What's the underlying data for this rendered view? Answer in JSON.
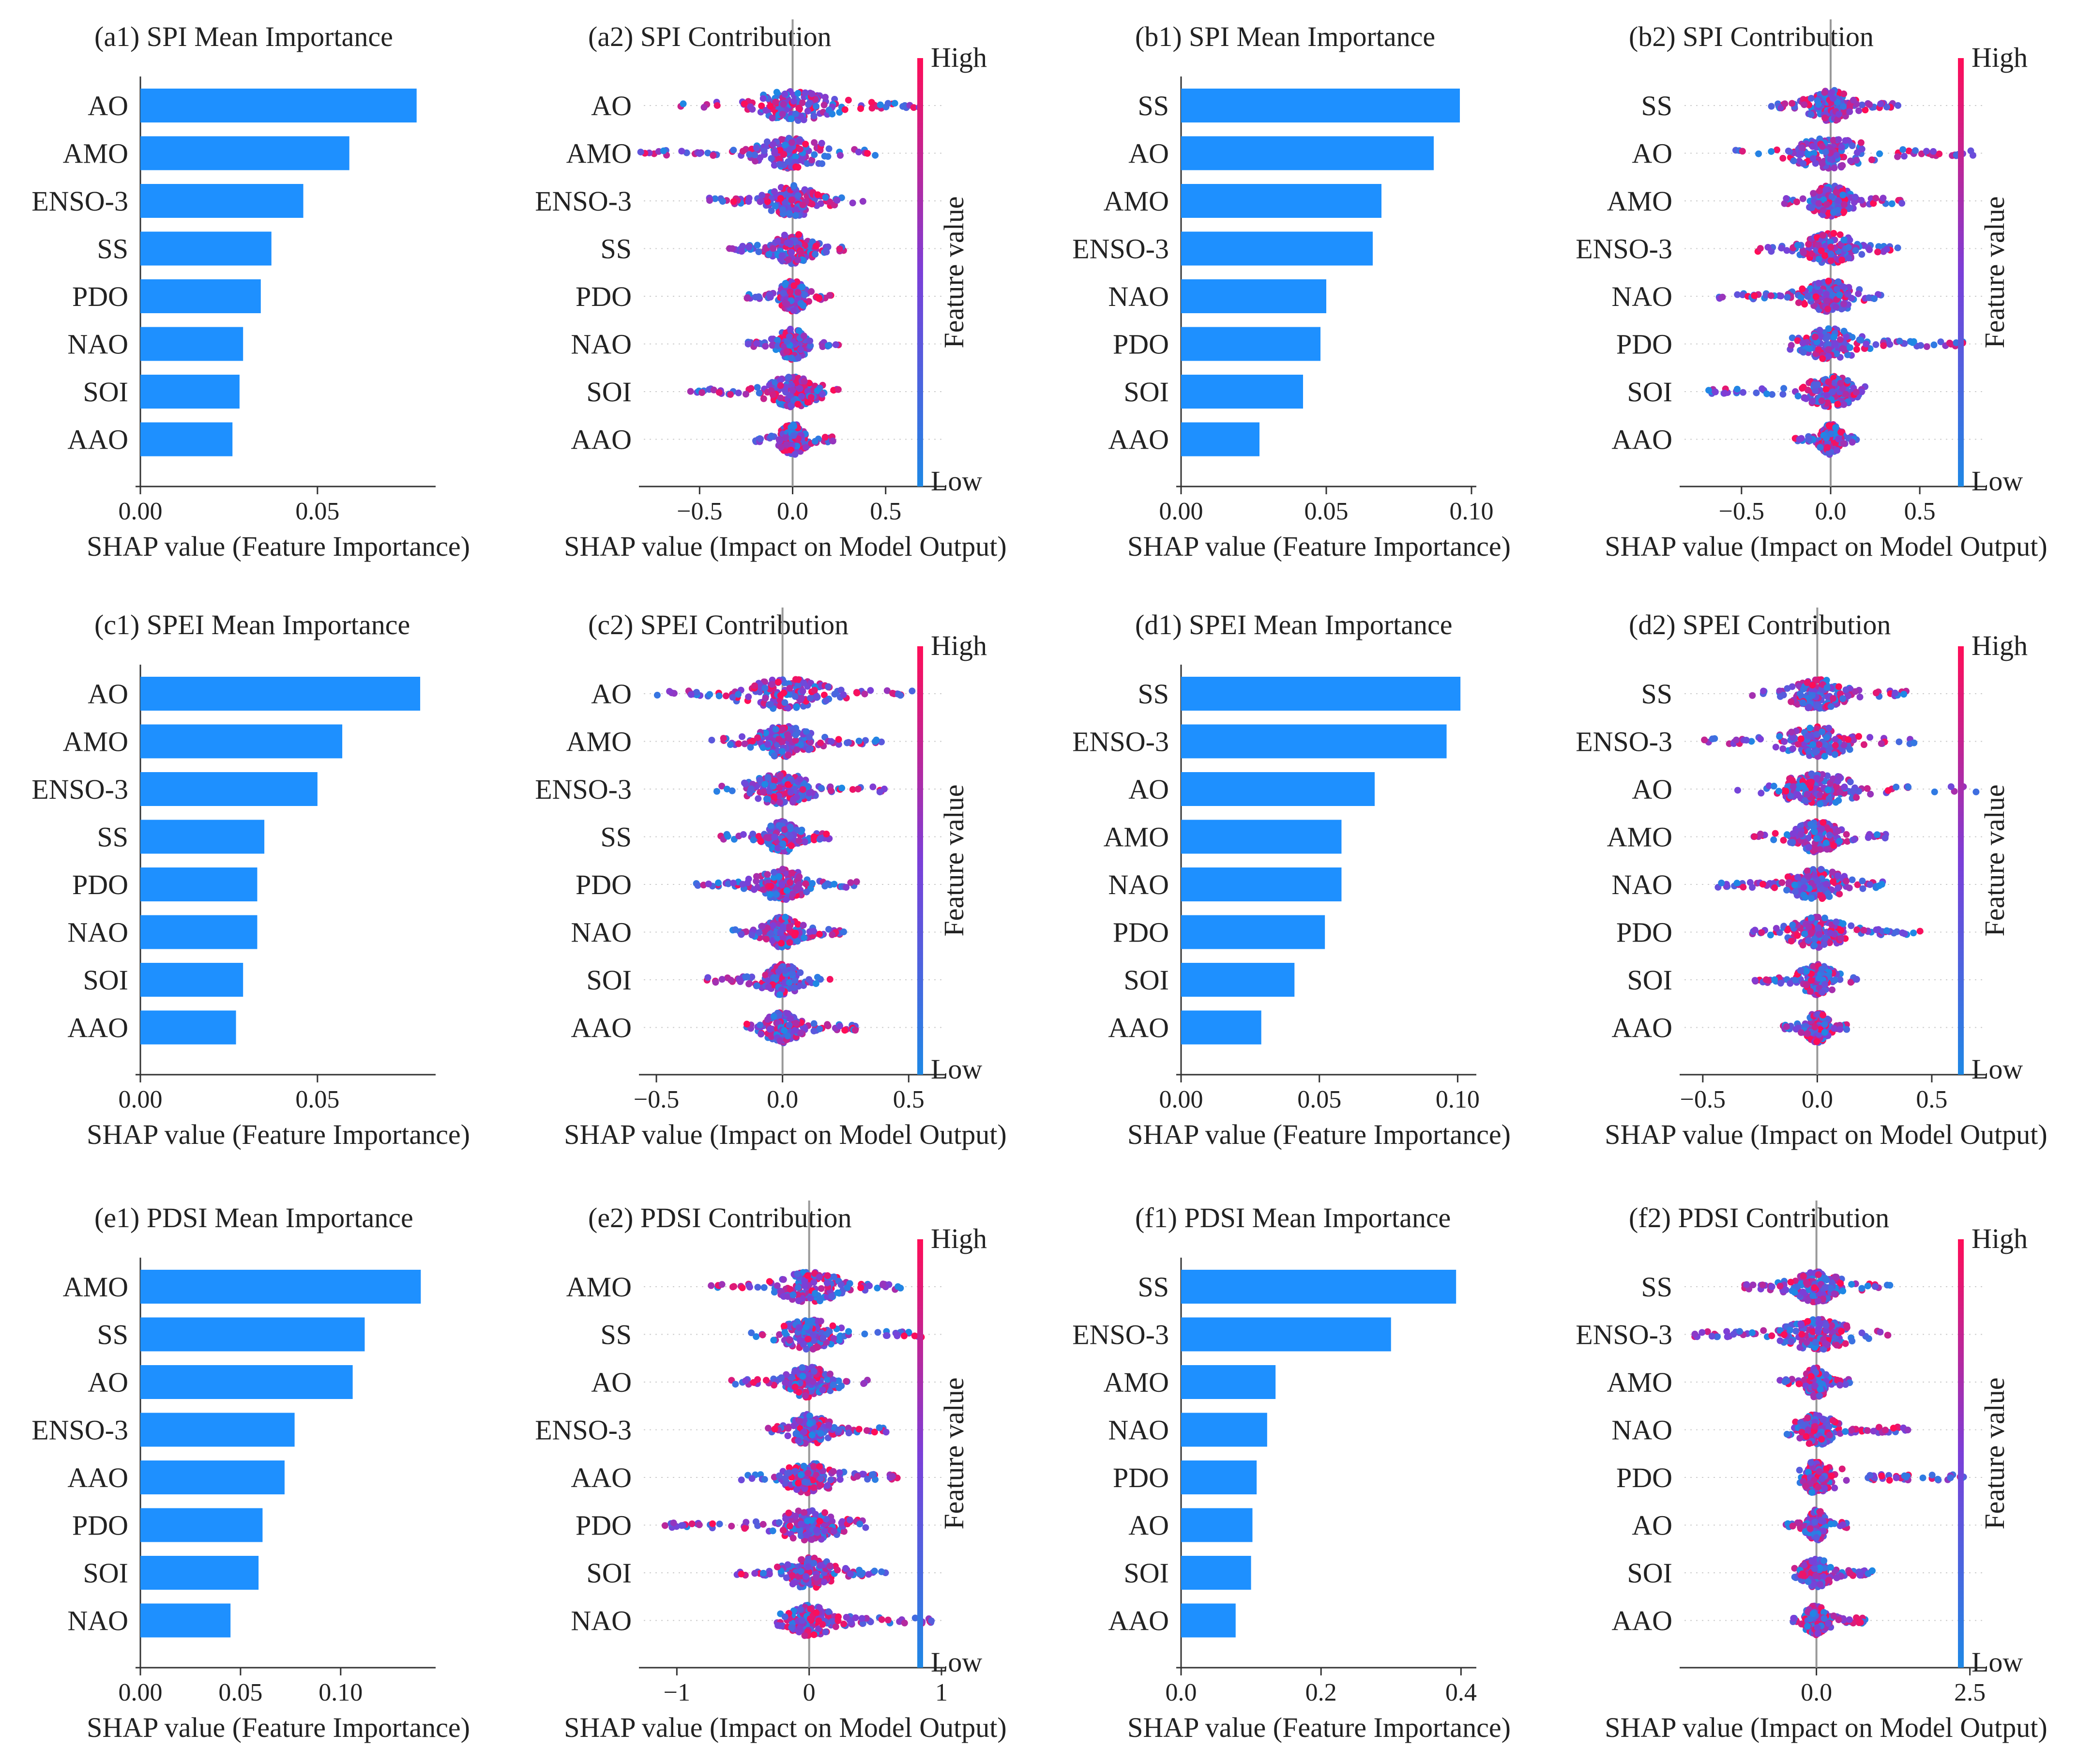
{
  "colors": {
    "bar": "#1e90ff",
    "low": "#1e88e5",
    "mid": "#7b3fd8",
    "high": "#ff0d57"
  },
  "colorbar": {
    "high_label": "High",
    "low_label": "Low",
    "title": "Feature value"
  },
  "chart_data": [
    {
      "id": "a1",
      "type": "bar",
      "orientation": "horizontal",
      "title": "(a1)  SPI Mean Importance",
      "xlabel": "SHAP value (Feature Importance)",
      "categories": [
        "AO",
        "AMO",
        "ENSO-3",
        "SS",
        "PDO",
        "NAO",
        "SOI",
        "AAO"
      ],
      "values": [
        0.078,
        0.059,
        0.046,
        0.037,
        0.034,
        0.029,
        0.028,
        0.026
      ],
      "xlim": [
        0,
        0.082
      ],
      "xticks": [
        0,
        0.05
      ],
      "xtick_labels": [
        "0.00",
        "0.05"
      ]
    },
    {
      "id": "a2",
      "type": "scatter",
      "subtype": "beeswarm",
      "title": "(a2)  SPI Contribution",
      "xlabel": "SHAP value (Impact on Model Output)",
      "categories": [
        "AO",
        "AMO",
        "ENSO-3",
        "SS",
        "PDO",
        "NAO",
        "SOI",
        "AAO"
      ],
      "ranges": [
        [
          -0.62,
          0.7
        ],
        [
          -0.82,
          0.45
        ],
        [
          -0.45,
          0.4
        ],
        [
          -0.35,
          0.3
        ],
        [
          -0.25,
          0.22
        ],
        [
          -0.25,
          0.25
        ],
        [
          -0.6,
          0.25
        ],
        [
          -0.2,
          0.22
        ]
      ],
      "xlim": [
        -0.8,
        0.8
      ],
      "xticks": [
        -0.5,
        0,
        0.5
      ],
      "xtick_labels": [
        "−0.5",
        "0.0",
        "0.5"
      ]
    },
    {
      "id": "b1",
      "type": "bar",
      "orientation": "horizontal",
      "title": "(b1)  SPI Mean Importance",
      "xlabel": "SHAP value (Feature Importance)",
      "categories": [
        "SS",
        "AO",
        "AMO",
        "ENSO-3",
        "NAO",
        "PDO",
        "SOI",
        "AAO"
      ],
      "values": [
        0.096,
        0.087,
        0.069,
        0.066,
        0.05,
        0.048,
        0.042,
        0.027
      ],
      "xlim": [
        0,
        0.1
      ],
      "xticks": [
        0,
        0.05,
        0.1
      ],
      "xtick_labels": [
        "0.00",
        "0.05",
        "0.10"
      ]
    },
    {
      "id": "b2",
      "type": "scatter",
      "subtype": "beeswarm",
      "title": "(b2)  SPI Contribution",
      "xlabel": "SHAP value (Impact on Model Output)",
      "categories": [
        "SS",
        "AO",
        "AMO",
        "ENSO-3",
        "NAO",
        "PDO",
        "SOI",
        "AAO"
      ],
      "ranges": [
        [
          -0.35,
          0.4
        ],
        [
          -0.55,
          0.8
        ],
        [
          -0.3,
          0.4
        ],
        [
          -0.45,
          0.4
        ],
        [
          -0.65,
          0.3
        ],
        [
          -0.3,
          0.75
        ],
        [
          -0.7,
          0.2
        ],
        [
          -0.2,
          0.15
        ]
      ],
      "xlim": [
        -0.82,
        0.85
      ],
      "xticks": [
        -0.5,
        0,
        0.5
      ],
      "xtick_labels": [
        "−0.5",
        "0.0",
        "0.5"
      ]
    },
    {
      "id": "c1",
      "type": "bar",
      "orientation": "horizontal",
      "title": "(c1)  SPEI Mean Importance",
      "xlabel": "SHAP value (Feature Importance)",
      "categories": [
        "AO",
        "AMO",
        "ENSO-3",
        "SS",
        "PDO",
        "NAO",
        "SOI",
        "AAO"
      ],
      "values": [
        0.079,
        0.057,
        0.05,
        0.035,
        0.033,
        0.033,
        0.029,
        0.027
      ],
      "xlim": [
        0,
        0.082
      ],
      "xticks": [
        0,
        0.05
      ],
      "xtick_labels": [
        "0.00",
        "0.05"
      ]
    },
    {
      "id": "c2",
      "type": "scatter",
      "subtype": "beeswarm",
      "title": "(c2)  SPEI Contribution",
      "xlabel": "SHAP value (Impact on Model Output)",
      "categories": [
        "AO",
        "AMO",
        "ENSO-3",
        "SS",
        "PDO",
        "NAO",
        "SOI",
        "AAO"
      ],
      "ranges": [
        [
          -0.5,
          0.6
        ],
        [
          -0.3,
          0.4
        ],
        [
          -0.3,
          0.45
        ],
        [
          -0.25,
          0.2
        ],
        [
          -0.35,
          0.3
        ],
        [
          -0.2,
          0.25
        ],
        [
          -0.3,
          0.2
        ],
        [
          -0.15,
          0.3
        ]
      ],
      "xlim": [
        -0.55,
        0.63
      ],
      "xticks": [
        -0.5,
        0,
        0.5
      ],
      "xtick_labels": [
        "−0.5",
        "0.0",
        "0.5"
      ]
    },
    {
      "id": "d1",
      "type": "bar",
      "orientation": "horizontal",
      "title": "(d1)  SPEI Mean Importance",
      "xlabel": "SHAP value (Feature Importance)",
      "categories": [
        "SS",
        "ENSO-3",
        "AO",
        "AMO",
        "NAO",
        "PDO",
        "SOI",
        "AAO"
      ],
      "values": [
        0.101,
        0.096,
        0.07,
        0.058,
        0.058,
        0.052,
        0.041,
        0.029
      ],
      "xlim": [
        0,
        0.105
      ],
      "xticks": [
        0,
        0.05,
        0.1
      ],
      "xtick_labels": [
        "0.00",
        "0.05",
        "0.10"
      ]
    },
    {
      "id": "d2",
      "type": "scatter",
      "subtype": "beeswarm",
      "title": "(d2)  SPEI Contribution",
      "xlabel": "SHAP value (Impact on Model Output)",
      "categories": [
        "SS",
        "ENSO-3",
        "AO",
        "AMO",
        "NAO",
        "PDO",
        "SOI",
        "AAO"
      ],
      "ranges": [
        [
          -0.3,
          0.4
        ],
        [
          -0.5,
          0.45
        ],
        [
          -0.35,
          0.7
        ],
        [
          -0.3,
          0.3
        ],
        [
          -0.45,
          0.3
        ],
        [
          -0.3,
          0.45
        ],
        [
          -0.3,
          0.2
        ],
        [
          -0.15,
          0.15
        ]
      ],
      "xlim": [
        -0.58,
        0.72
      ],
      "xticks": [
        -0.5,
        0,
        0.5
      ],
      "xtick_labels": [
        "−0.5",
        "0.0",
        "0.5"
      ]
    },
    {
      "id": "e1",
      "type": "bar",
      "orientation": "horizontal",
      "title": "(e1)  PDSI Mean Importance",
      "xlabel": "SHAP value (Feature Importance)",
      "categories": [
        "AMO",
        "SS",
        "AO",
        "ENSO-3",
        "AAO",
        "PDO",
        "SOI",
        "NAO"
      ],
      "values": [
        0.14,
        0.112,
        0.106,
        0.077,
        0.072,
        0.061,
        0.059,
        0.045
      ],
      "xlim": [
        0,
        0.145
      ],
      "xticks": [
        0,
        0.05,
        0.1
      ],
      "xtick_labels": [
        "0.00",
        "0.05",
        "0.10"
      ]
    },
    {
      "id": "e2",
      "type": "scatter",
      "subtype": "beeswarm",
      "title": "(e2)  PDSI Contribution",
      "xlabel": "SHAP value (Impact on Model Output)",
      "categories": [
        "AMO",
        "SS",
        "AO",
        "ENSO-3",
        "AAO",
        "PDO",
        "SOI",
        "NAO"
      ],
      "ranges": [
        [
          -0.75,
          0.7
        ],
        [
          -0.45,
          0.85
        ],
        [
          -0.6,
          0.45
        ],
        [
          -0.35,
          0.6
        ],
        [
          -0.55,
          0.7
        ],
        [
          -1.12,
          0.45
        ],
        [
          -0.55,
          0.6
        ],
        [
          -0.25,
          0.95
        ]
      ],
      "xlim": [
        -1.25,
        1.0
      ],
      "xticks": [
        -1,
        0,
        1
      ],
      "xtick_labels": [
        "−1",
        "0",
        "1"
      ]
    },
    {
      "id": "f1",
      "type": "bar",
      "orientation": "horizontal",
      "title": "(f1)  PDSI Mean Importance",
      "xlabel": "SHAP value (Feature Importance)",
      "categories": [
        "SS",
        "ENSO-3",
        "AMO",
        "NAO",
        "PDO",
        "AO",
        "SOI",
        "AAO"
      ],
      "values": [
        0.393,
        0.3,
        0.135,
        0.123,
        0.108,
        0.102,
        0.1,
        0.078
      ],
      "xlim": [
        0,
        0.415
      ],
      "xticks": [
        0,
        0.2,
        0.4
      ],
      "xtick_labels": [
        "0.0",
        "0.2",
        "0.4"
      ]
    },
    {
      "id": "f2",
      "type": "scatter",
      "subtype": "beeswarm",
      "title": "(f2)  PDSI Contribution",
      "xlabel": "SHAP value (Impact on Model Output)",
      "categories": [
        "SS",
        "ENSO-3",
        "AMO",
        "NAO",
        "PDO",
        "AO",
        "SOI",
        "AAO"
      ],
      "ranges": [
        [
          -1.2,
          1.2
        ],
        [
          -2.0,
          1.2
        ],
        [
          -0.6,
          0.55
        ],
        [
          -0.5,
          1.5
        ],
        [
          -0.3,
          2.5
        ],
        [
          -0.5,
          0.5
        ],
        [
          -0.4,
          1.0
        ],
        [
          -0.4,
          0.8
        ]
      ],
      "xlim": [
        -2.15,
        2.7
      ],
      "xticks": [
        0,
        2.5
      ],
      "xtick_labels": [
        "0.0",
        "2.5"
      ]
    }
  ]
}
